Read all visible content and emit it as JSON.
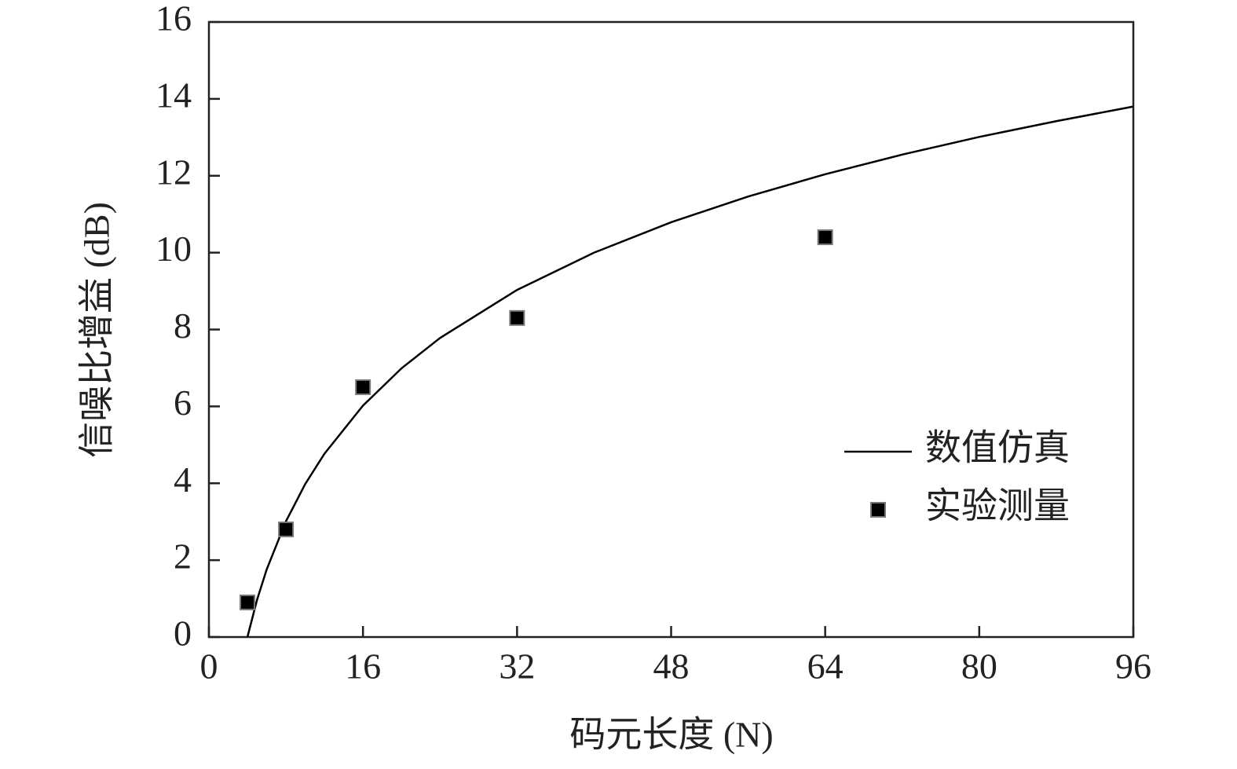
{
  "chart_data": {
    "type": "line",
    "xlabel": "码元长度 (N)",
    "ylabel": "信噪比增益 (dB)",
    "xlim": [
      0,
      96
    ],
    "xticks": [
      0,
      16,
      32,
      48,
      64,
      80,
      96
    ],
    "ylim": [
      0,
      16
    ],
    "yticks": [
      0,
      2,
      4,
      6,
      8,
      10,
      12,
      14,
      16
    ],
    "legend": "right",
    "series": [
      {
        "name": "数值仿真",
        "type": "line",
        "color": "#000000",
        "x": [
          4,
          5,
          6,
          8,
          10,
          12,
          16,
          20,
          24,
          32,
          40,
          48,
          56,
          64,
          72,
          80,
          88,
          96
        ],
        "values": [
          0,
          0.97,
          1.76,
          3.01,
          3.98,
          4.77,
          6.02,
          6.99,
          7.78,
          9.03,
          10.0,
          10.79,
          11.46,
          12.04,
          12.55,
          13.01,
          13.42,
          13.8
        ]
      },
      {
        "name": "实验测量",
        "type": "scatter",
        "color": "#000000",
        "x": [
          4,
          8,
          16,
          32,
          64
        ],
        "values": [
          0.9,
          2.8,
          6.5,
          8.3,
          10.4
        ]
      }
    ]
  }
}
